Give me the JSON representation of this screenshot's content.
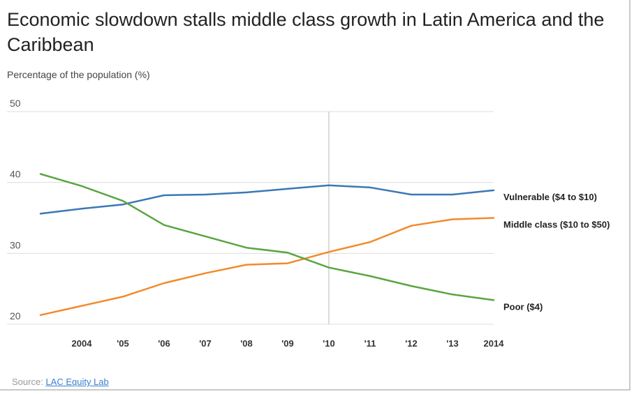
{
  "title": "Economic slowdown stalls middle class growth in Latin America and the Caribbean",
  "source": {
    "prefix": "Source:",
    "link_text": "LAC Equity Lab"
  },
  "colors": {
    "vulnerable": "#3b78b5",
    "middle_class": "#f28a2a",
    "poor": "#5aa542",
    "grid": "#dcdcdc",
    "marker": "#cfcfcf"
  },
  "chart_data": {
    "type": "line",
    "title": "Economic slowdown stalls middle class growth in Latin America and the Caribbean",
    "ylabel": "Percentage of the population (%)",
    "xlabel": "",
    "x": [
      2003,
      2004,
      2005,
      2006,
      2007,
      2008,
      2009,
      2010,
      2011,
      2012,
      2013,
      2014
    ],
    "xtick_values": [
      2004,
      2005,
      2006,
      2007,
      2008,
      2009,
      2010,
      2011,
      2012,
      2013,
      2014
    ],
    "xtick_labels": [
      "2004",
      "'05",
      "'06",
      "'07",
      "'08",
      "'09",
      "'10",
      "'11",
      "'12",
      "'13",
      "2014"
    ],
    "ylim": [
      20,
      50
    ],
    "yticks": [
      20,
      30,
      40,
      50
    ],
    "xlim": [
      2003,
      2014
    ],
    "vertical_marker_x": 2010,
    "series": [
      {
        "key": "vulnerable",
        "name": "Vulnerable ($4 to $10)",
        "values": [
          35.6,
          36.3,
          36.9,
          38.2,
          38.3,
          38.6,
          39.1,
          39.6,
          39.3,
          38.3,
          38.3,
          38.9
        ]
      },
      {
        "key": "middle_class",
        "name": "Middle class ($10 to $50)",
        "values": [
          21.3,
          22.6,
          23.9,
          25.8,
          27.2,
          28.4,
          28.6,
          30.2,
          31.6,
          33.9,
          34.8,
          35.0
        ]
      },
      {
        "key": "poor",
        "name": "Poor ($4)",
        "values": [
          41.2,
          39.5,
          37.4,
          34.0,
          32.4,
          30.8,
          30.1,
          28.0,
          26.8,
          25.4,
          24.2,
          23.4
        ]
      }
    ]
  }
}
